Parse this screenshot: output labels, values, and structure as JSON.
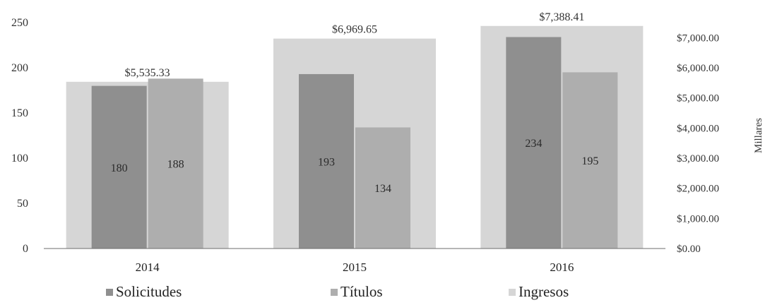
{
  "chart_data": {
    "type": "bar",
    "categories": [
      "2014",
      "2015",
      "2016"
    ],
    "series": [
      {
        "name": "Solicitudes",
        "axis": "left",
        "values": [
          180,
          193,
          234
        ],
        "color": "#8f8f8f"
      },
      {
        "name": "Títulos",
        "axis": "left",
        "values": [
          188,
          134,
          195
        ],
        "color": "#aeaeae"
      },
      {
        "name": "Ingresos",
        "axis": "right",
        "values": [
          5535.33,
          6969.65,
          7388.41
        ],
        "color": "#d6d6d6"
      }
    ],
    "series_data_labels": [
      [
        "180",
        "193",
        "234"
      ],
      [
        "188",
        "134",
        "195"
      ],
      [
        "$5,535.33",
        "$6,969.65",
        "$7,388.41"
      ]
    ],
    "left_axis": {
      "ylim": [
        0,
        250
      ],
      "ticks": [
        "0",
        "50",
        "100",
        "150",
        "200",
        "250"
      ]
    },
    "right_axis": {
      "ylabel": "Millares",
      "ylim": [
        0,
        7500
      ],
      "ticks": [
        "$0.00",
        "$1,000.00",
        "$2,000.00",
        "$3,000.00",
        "$4,000.00",
        "$5,000.00",
        "$6,000.00",
        "$7,000.00"
      ]
    },
    "legend": {
      "position": "bottom",
      "entries": [
        "Solicitudes",
        "Títulos",
        "Ingresos"
      ]
    },
    "grid": false
  }
}
